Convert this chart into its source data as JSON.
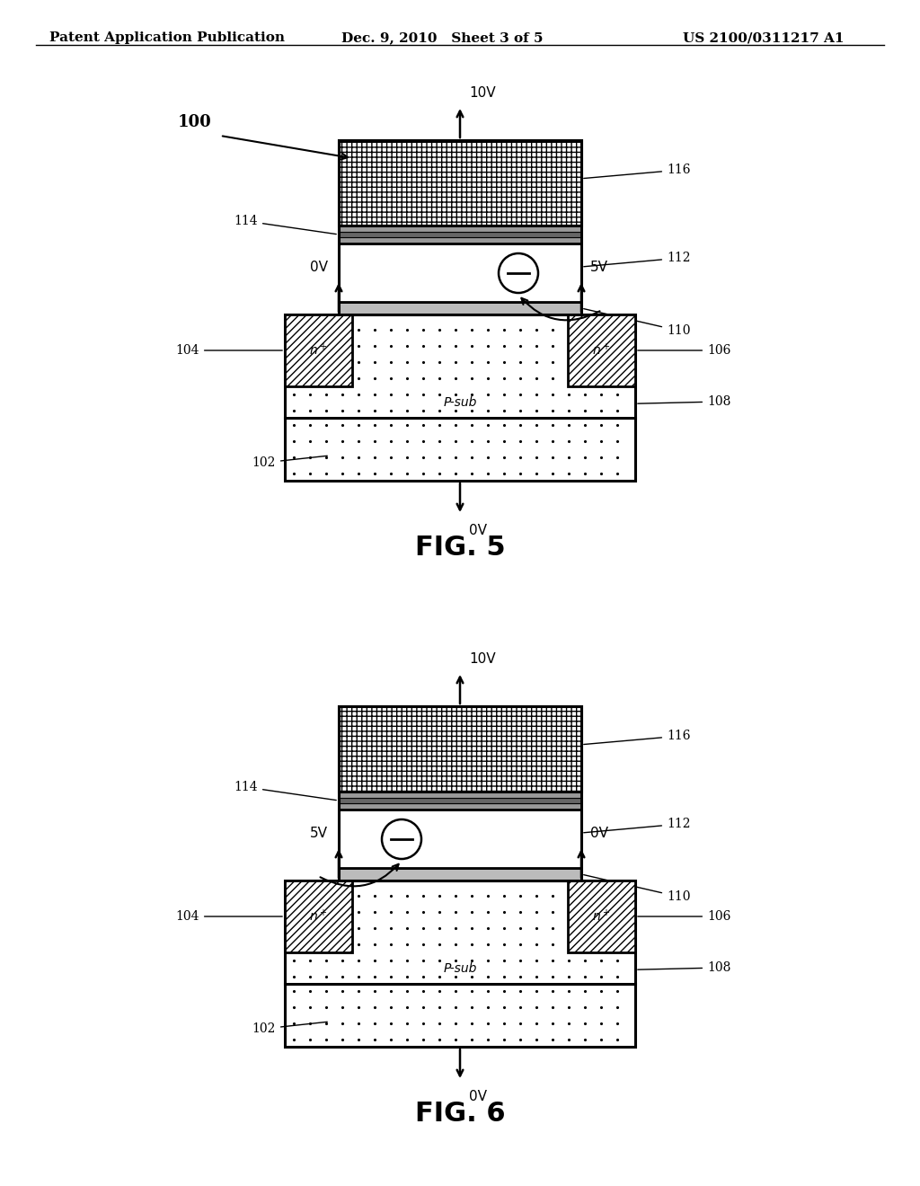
{
  "header_left": "Patent Application Publication",
  "header_mid": "Dec. 9, 2010   Sheet 3 of 5",
  "header_right": "US 2100/0311217 A1",
  "bg_color": "#ffffff",
  "fig5_label": "FIG. 5",
  "fig6_label": "FIG. 6",
  "fig5": {
    "top_voltage": "10V",
    "left_voltage": "0V",
    "right_voltage": "5V",
    "sub_voltage": "0V",
    "electron_side": "right"
  },
  "fig6": {
    "top_voltage": "10V",
    "left_voltage": "5V",
    "right_voltage": "0V",
    "sub_voltage": "0V",
    "electron_side": "left"
  }
}
